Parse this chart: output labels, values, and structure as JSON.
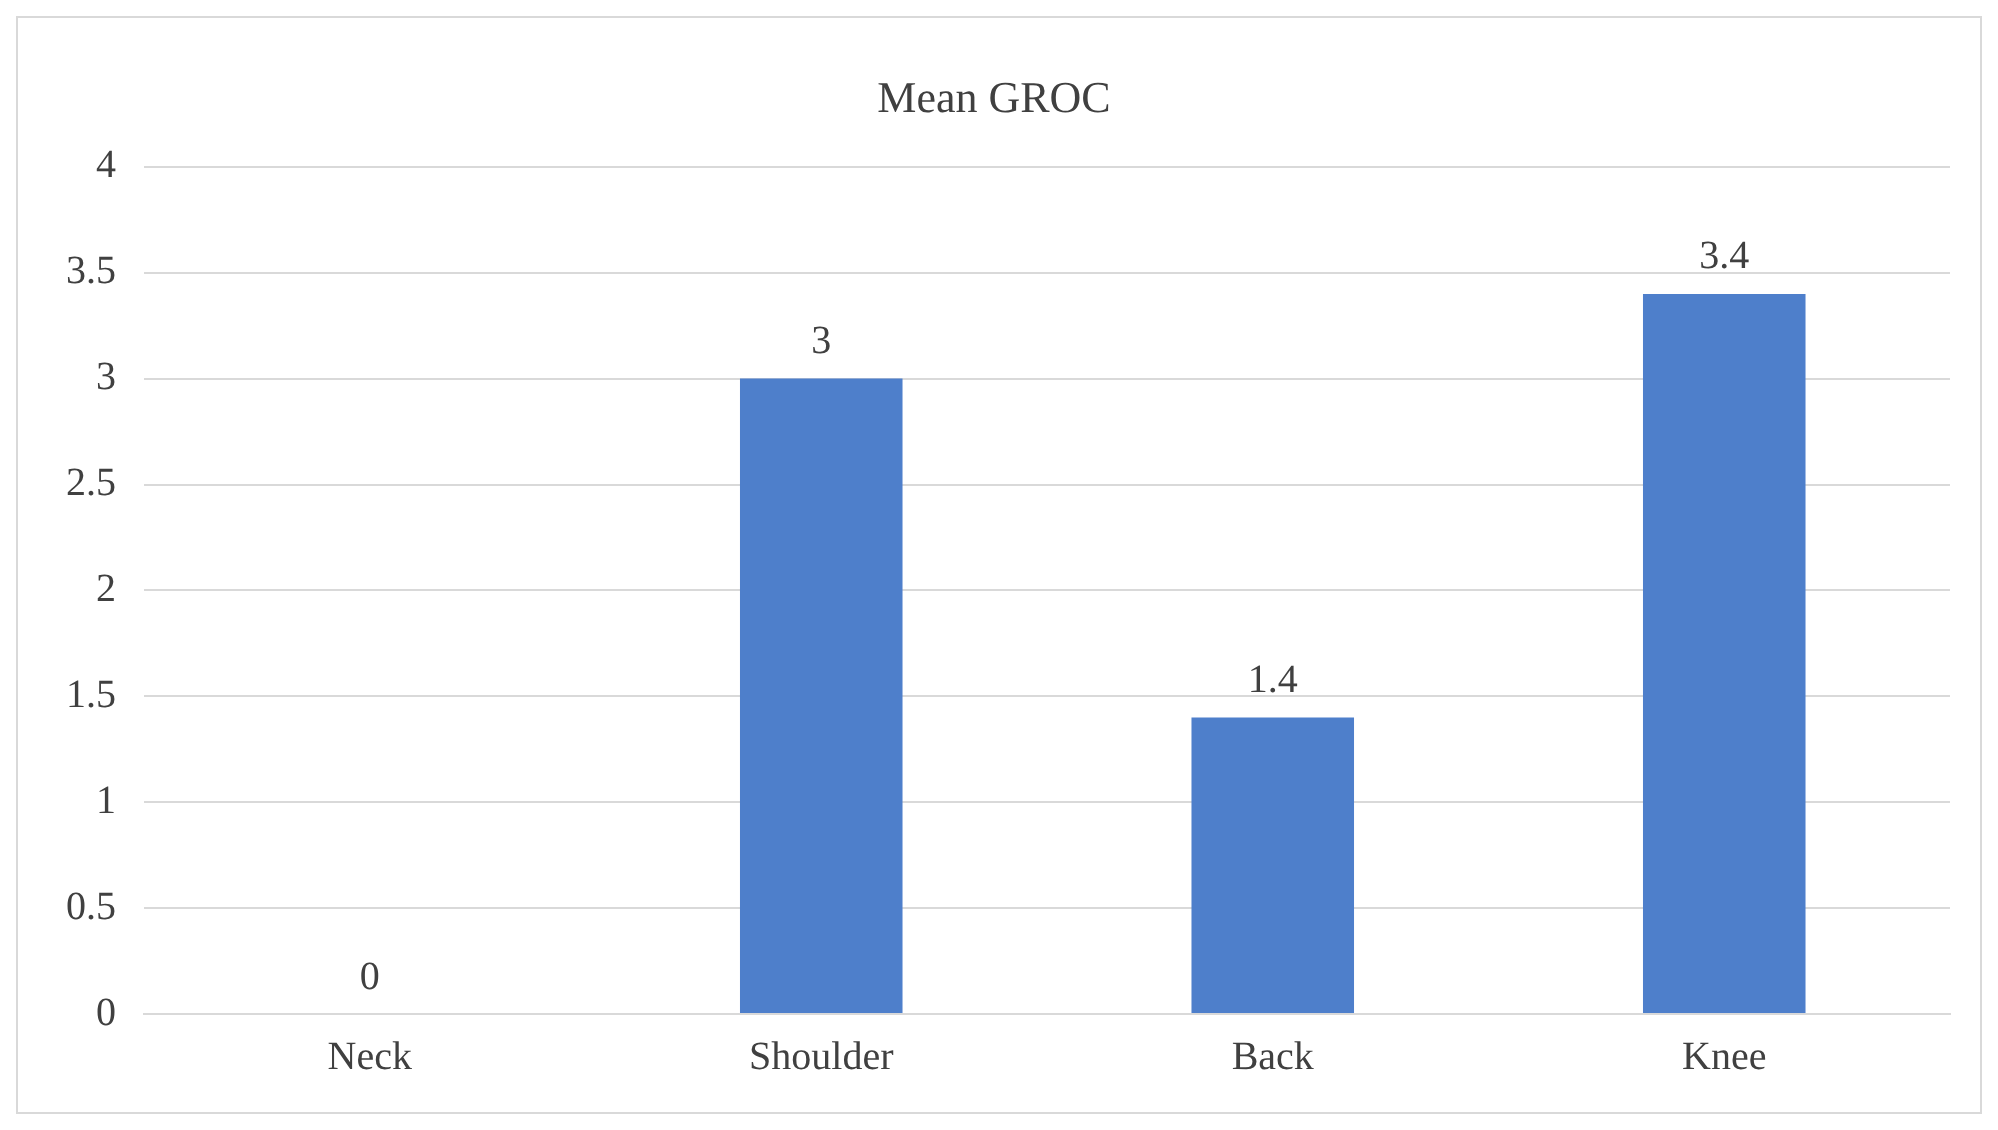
{
  "chart_data": {
    "type": "bar",
    "title": "Mean GROC",
    "categories": [
      "Neck",
      "Shoulder",
      "Back",
      "Knee"
    ],
    "values": [
      0,
      3,
      1.4,
      3.4
    ],
    "color": "#4e7fcb",
    "ylim": [
      0,
      4
    ],
    "yticks": [
      0,
      0.5,
      1,
      1.5,
      2,
      2.5,
      3,
      3.5,
      4
    ],
    "grid": "y",
    "data_labels": true
  }
}
